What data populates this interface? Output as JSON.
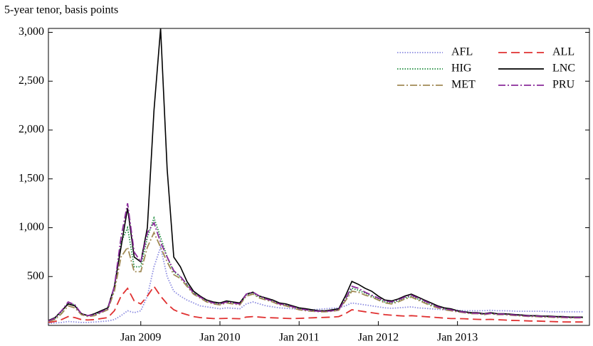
{
  "chart_data": {
    "type": "line",
    "subtitle": "5-year tenor, basis points",
    "x": [
      "2007-11",
      "2007-12",
      "2008-01",
      "2008-02",
      "2008-03",
      "2008-04",
      "2008-05",
      "2008-06",
      "2008-07",
      "2008-08",
      "2008-09",
      "2008-10",
      "2008-11",
      "2008-12",
      "2009-01",
      "2009-02",
      "2009-03",
      "2009-04",
      "2009-05",
      "2009-06",
      "2009-07",
      "2009-08",
      "2009-09",
      "2009-10",
      "2009-11",
      "2009-12",
      "2010-01",
      "2010-02",
      "2010-03",
      "2010-04",
      "2010-05",
      "2010-06",
      "2010-07",
      "2010-08",
      "2010-09",
      "2010-10",
      "2010-11",
      "2010-12",
      "2011-01",
      "2011-02",
      "2011-03",
      "2011-04",
      "2011-05",
      "2011-06",
      "2011-07",
      "2011-08",
      "2011-09",
      "2011-10",
      "2011-11",
      "2011-12",
      "2012-01",
      "2012-02",
      "2012-03",
      "2012-04",
      "2012-05",
      "2012-06",
      "2012-07",
      "2012-08",
      "2012-09",
      "2012-10",
      "2012-11",
      "2012-12",
      "2013-01",
      "2013-02",
      "2013-03",
      "2013-04",
      "2013-05",
      "2013-06",
      "2013-07",
      "2013-08",
      "2013-09",
      "2013-10",
      "2013-11",
      "2013-12",
      "2014-01",
      "2014-02",
      "2014-03",
      "2014-04",
      "2014-05",
      "2014-06",
      "2014-07",
      "2014-08"
    ],
    "xlim": [
      "2007-11",
      "2014-09"
    ],
    "xticks": [
      {
        "value": "2009-01",
        "label": "Jan 2009"
      },
      {
        "value": "2010-01",
        "label": "Jan 2010"
      },
      {
        "value": "2011-01",
        "label": "Jan 2011"
      },
      {
        "value": "2012-01",
        "label": "Jan 2012"
      },
      {
        "value": "2013-01",
        "label": "Jan 2013"
      }
    ],
    "ylim": [
      0,
      3040
    ],
    "yticks": [
      500,
      {
        "value": 1000,
        "label": "1,000"
      },
      {
        "value": 1500,
        "label": "1,500"
      },
      {
        "value": 2000,
        "label": "2,000"
      },
      {
        "value": 2500,
        "label": "2,500"
      },
      {
        "value": 3000,
        "label": "3,000"
      }
    ],
    "legend": "top-right",
    "series": [
      {
        "name": "AFL",
        "color": "#8a8ae0",
        "dash": "dotted",
        "values": [
          20,
          25,
          30,
          40,
          35,
          30,
          30,
          35,
          40,
          45,
          60,
          100,
          150,
          130,
          150,
          300,
          600,
          800,
          500,
          350,
          300,
          260,
          230,
          200,
          190,
          180,
          170,
          180,
          175,
          170,
          220,
          240,
          220,
          200,
          190,
          180,
          175,
          170,
          165,
          160,
          160,
          165,
          170,
          175,
          180,
          200,
          230,
          220,
          210,
          200,
          190,
          180,
          175,
          180,
          185,
          190,
          180,
          175,
          170,
          165,
          160,
          160,
          155,
          150,
          150,
          150,
          150,
          155,
          150,
          150,
          148,
          145,
          145,
          145,
          145,
          145,
          140,
          140,
          140,
          140,
          140,
          140
        ]
      },
      {
        "name": "ALL",
        "color": "#e03030",
        "dash": "dashed",
        "values": [
          30,
          40,
          60,
          90,
          80,
          60,
          55,
          60,
          70,
          80,
          150,
          300,
          380,
          250,
          220,
          300,
          400,
          300,
          220,
          160,
          130,
          110,
          90,
          80,
          75,
          70,
          70,
          72,
          70,
          68,
          85,
          90,
          85,
          80,
          78,
          75,
          72,
          70,
          72,
          75,
          78,
          80,
          82,
          85,
          90,
          120,
          160,
          150,
          140,
          130,
          120,
          110,
          105,
          100,
          95,
          100,
          95,
          90,
          85,
          80,
          75,
          70,
          70,
          68,
          65,
          62,
          60,
          62,
          58,
          55,
          52,
          50,
          48,
          45,
          45,
          42,
          40,
          38,
          36,
          35,
          35,
          35
        ]
      },
      {
        "name": "HIG",
        "color": "#1a8a3a",
        "dash": "dotted",
        "values": [
          40,
          70,
          140,
          230,
          210,
          120,
          100,
          110,
          140,
          170,
          380,
          850,
          1000,
          600,
          600,
          900,
          1100,
          900,
          700,
          550,
          500,
          420,
          330,
          290,
          250,
          230,
          220,
          240,
          230,
          220,
          310,
          330,
          290,
          270,
          250,
          220,
          210,
          190,
          170,
          160,
          150,
          145,
          145,
          150,
          160,
          260,
          380,
          360,
          330,
          300,
          270,
          240,
          230,
          250,
          280,
          300,
          270,
          240,
          210,
          190,
          170,
          160,
          145,
          135,
          125,
          125,
          115,
          125,
          115,
          115,
          110,
          105,
          100,
          95,
          95,
          90,
          90,
          85,
          85,
          80,
          80,
          80
        ]
      },
      {
        "name": "LNC",
        "color": "#000000",
        "dash": "solid",
        "values": [
          50,
          80,
          150,
          220,
          200,
          120,
          100,
          120,
          150,
          180,
          400,
          800,
          1200,
          700,
          650,
          1000,
          2200,
          3040,
          1600,
          700,
          600,
          450,
          350,
          300,
          260,
          240,
          230,
          250,
          240,
          230,
          320,
          340,
          300,
          280,
          260,
          230,
          220,
          200,
          180,
          170,
          160,
          150,
          150,
          160,
          170,
          300,
          450,
          420,
          380,
          350,
          300,
          260,
          250,
          270,
          300,
          320,
          290,
          260,
          230,
          200,
          180,
          170,
          150,
          140,
          130,
          130,
          120,
          130,
          120,
          120,
          115,
          110,
          105,
          100,
          100,
          95,
          95,
          90,
          90,
          85,
          85,
          85
        ]
      },
      {
        "name": "MET",
        "color": "#a08a55",
        "dash": "dashdot",
        "values": [
          40,
          60,
          120,
          200,
          180,
          110,
          90,
          100,
          130,
          160,
          350,
          700,
          800,
          550,
          550,
          800,
          950,
          800,
          650,
          520,
          480,
          400,
          320,
          280,
          240,
          220,
          210,
          230,
          220,
          210,
          300,
          320,
          280,
          260,
          240,
          210,
          200,
          180,
          160,
          150,
          145,
          140,
          140,
          145,
          155,
          250,
          350,
          340,
          310,
          290,
          260,
          230,
          220,
          240,
          270,
          290,
          260,
          230,
          200,
          180,
          160,
          150,
          140,
          130,
          120,
          120,
          110,
          120,
          110,
          110,
          105,
          100,
          95,
          90,
          90,
          85,
          85,
          80,
          80,
          78,
          78,
          78
        ]
      },
      {
        "name": "PRU",
        "color": "#8a2a9a",
        "dash": "dashdot",
        "values": [
          45,
          75,
          150,
          240,
          210,
          120,
          100,
          110,
          140,
          170,
          400,
          900,
          1250,
          750,
          650,
          950,
          1050,
          850,
          700,
          560,
          500,
          420,
          330,
          290,
          250,
          230,
          220,
          240,
          230,
          220,
          320,
          340,
          300,
          270,
          250,
          220,
          210,
          190,
          170,
          160,
          150,
          145,
          145,
          150,
          160,
          270,
          400,
          380,
          340,
          310,
          280,
          250,
          240,
          260,
          290,
          310,
          280,
          250,
          220,
          190,
          170,
          160,
          145,
          135,
          125,
          125,
          115,
          125,
          115,
          115,
          110,
          105,
          100,
          95,
          95,
          90,
          90,
          85,
          85,
          80,
          80,
          80
        ]
      }
    ]
  }
}
